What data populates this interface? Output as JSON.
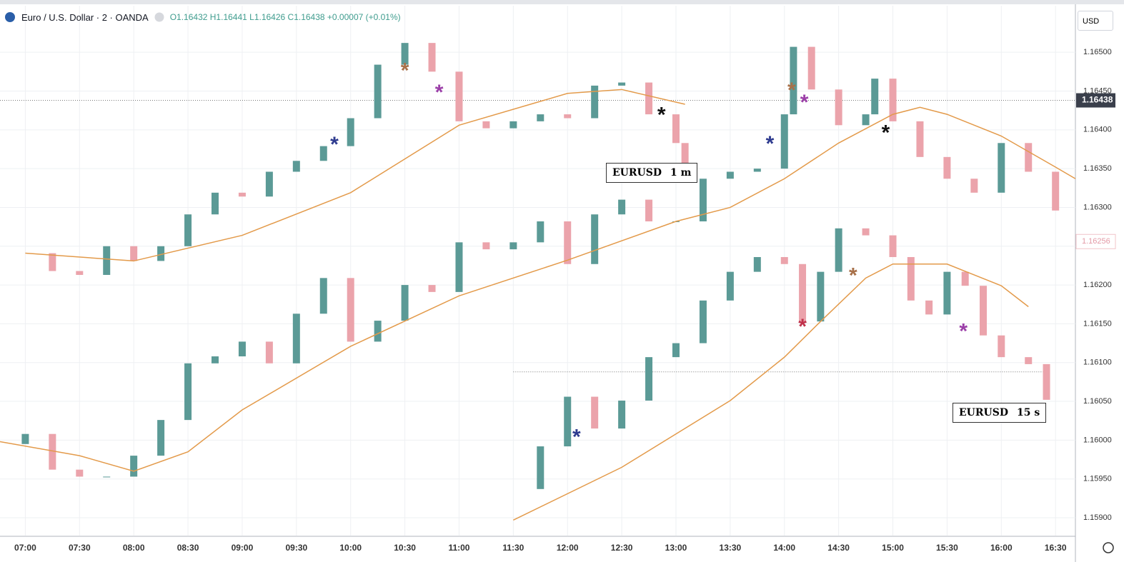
{
  "header": {
    "symbol": "Euro / U.S. Dollar · 2 · OANDA",
    "ohlc": "O1.16432 H1.16441 L1.16426 C1.16438 +0.00007 (+0.01%)",
    "currency": "USD"
  },
  "chart_data": {
    "type": "candlestick",
    "xlim": [
      "06:46",
      "16:41"
    ],
    "xticks": [
      "07:00",
      "07:30",
      "08:00",
      "08:30",
      "09:00",
      "09:30",
      "10:00",
      "10:30",
      "11:00",
      "11:30",
      "12:00",
      "12:30",
      "13:00",
      "13:30",
      "14:00",
      "14:30",
      "15:00",
      "15:30",
      "16:00",
      "16:30"
    ],
    "ylim": [
      1.15877,
      1.1656
    ],
    "yticks": [
      {
        "value": 1.159,
        "label": "1.15900"
      },
      {
        "value": 1.1595,
        "label": "1.15950"
      },
      {
        "value": 1.16,
        "label": "1.16000"
      },
      {
        "value": 1.1605,
        "label": "1.16050"
      },
      {
        "value": 1.161,
        "label": "1.16100"
      },
      {
        "value": 1.1615,
        "label": "1.16150"
      },
      {
        "value": 1.162,
        "label": "1.16200"
      },
      {
        "value": 1.1625,
        "label": "1.16250"
      },
      {
        "value": 1.163,
        "label": "1.16300"
      },
      {
        "value": 1.1635,
        "label": "1.16350"
      },
      {
        "value": 1.164,
        "label": "1.16400"
      },
      {
        "value": 1.1645,
        "label": "1.16450"
      },
      {
        "value": 1.165,
        "label": "1.16500"
      }
    ],
    "grid": true,
    "last_price": {
      "value": 1.16438,
      "label": "1.16438"
    },
    "marked_price": {
      "value": 1.16256,
      "label": "1.16256"
    },
    "price_lines": [
      {
        "value": 1.16438,
        "x": [
          "06:46",
          "16:41"
        ]
      },
      {
        "value": 1.16088,
        "x": [
          "11:30",
          "16:25"
        ]
      }
    ],
    "series": [
      {
        "type": "candles",
        "up_color": "#5b9a96",
        "down_color": "#eba3ab",
        "x": [
          "07:00",
          "07:15",
          "07:30",
          "07:45",
          "08:00",
          "08:15",
          "08:30",
          "08:45",
          "09:00",
          "09:15",
          "09:30",
          "09:45",
          "10:00",
          "10:15",
          "10:30",
          "10:45",
          "11:00",
          "11:15",
          "11:30",
          "11:45",
          "12:00",
          "12:15",
          "12:30",
          "12:45",
          "13:00",
          "13:05"
        ],
        "values": [
          1.16241,
          1.16218,
          1.16213,
          1.1625,
          1.16231,
          1.1625,
          1.16291,
          1.16319,
          1.16314,
          1.16346,
          1.1636,
          1.16379,
          1.16415,
          1.16484,
          1.16512,
          1.16475,
          1.16411,
          1.16402,
          1.16411,
          1.1642,
          1.16415,
          1.16457,
          1.16461,
          1.1642,
          1.16383,
          1.16337
        ]
      },
      {
        "type": "candles",
        "up_color": "#5b9a96",
        "down_color": "#eba3ab",
        "x": [
          "06:50",
          "07:00",
          "07:15",
          "07:30",
          "07:45",
          "08:00",
          "08:15",
          "08:30",
          "08:45",
          "09:00",
          "09:15",
          "09:30",
          "09:45",
          "10:00",
          "10:15",
          "10:30",
          "10:45",
          "11:00",
          "11:15",
          "11:30",
          "11:45",
          "12:00",
          "12:15",
          "12:30",
          "12:45",
          "13:00",
          "13:15",
          "13:30",
          "13:45",
          "14:00",
          "14:05",
          "14:15",
          "14:30",
          "14:45",
          "14:50",
          "15:00",
          "15:15",
          "15:30",
          "15:45",
          "16:00",
          "16:15",
          "16:30"
        ],
        "values": [
          1.15995,
          1.16008,
          1.15962,
          1.15953,
          1.15953,
          1.1598,
          1.16026,
          1.16099,
          1.16108,
          1.16127,
          1.16099,
          1.16163,
          1.16209,
          1.16127,
          1.16154,
          1.162,
          1.16191,
          1.16255,
          1.16246,
          1.16255,
          1.16282,
          1.16227,
          1.16291,
          1.1631,
          1.16282,
          1.16282,
          1.16337,
          1.16346,
          1.1635,
          1.1642,
          1.16507,
          1.16452,
          1.16406,
          1.1642,
          1.16466,
          1.16411,
          1.16365,
          1.16337,
          1.16319,
          1.16383,
          1.16346,
          1.16296
        ]
      },
      {
        "type": "candles",
        "up_color": "#5b9a96",
        "down_color": "#eba3ab",
        "x": [
          "11:30",
          "11:45",
          "12:00",
          "12:15",
          "12:30",
          "12:45",
          "13:00",
          "13:15",
          "13:30",
          "13:45",
          "14:00",
          "14:10",
          "14:20",
          "14:30",
          "14:45",
          "15:00",
          "15:10",
          "15:20",
          "15:30",
          "15:40",
          "15:50",
          "16:00",
          "16:15",
          "16:25"
        ],
        "values": [
          1.15937,
          1.15992,
          1.16056,
          1.16015,
          1.16051,
          1.16107,
          1.16125,
          1.1618,
          1.16217,
          1.16236,
          1.16227,
          1.16153,
          1.16217,
          1.16273,
          1.16264,
          1.16236,
          1.1618,
          1.16162,
          1.16217,
          1.16199,
          1.16135,
          1.16107,
          1.16098,
          1.16052
        ]
      },
      {
        "type": "line",
        "color": "#e39a4a",
        "x": [
          "07:00",
          "08:00",
          "09:00",
          "10:00",
          "11:00",
          "12:00",
          "12:30",
          "13:05"
        ],
        "values": [
          1.16241,
          1.16231,
          1.16264,
          1.16319,
          1.16406,
          1.16447,
          1.16452,
          1.16433
        ]
      },
      {
        "type": "line",
        "color": "#e39a4a",
        "x": [
          "06:46",
          "07:30",
          "08:00",
          "08:30",
          "09:00",
          "10:00",
          "11:00",
          "12:00",
          "13:00",
          "13:30",
          "14:00",
          "14:30",
          "15:00",
          "15:15",
          "15:30",
          "16:00",
          "16:30",
          "16:41"
        ],
        "values": [
          1.15998,
          1.1598,
          1.1596,
          1.15985,
          1.16039,
          1.16121,
          1.16186,
          1.16232,
          1.16282,
          1.163,
          1.16337,
          1.16383,
          1.1642,
          1.16429,
          1.1642,
          1.16392,
          1.16352,
          1.16337
        ]
      },
      {
        "type": "line",
        "color": "#e39a4a",
        "x": [
          "11:30",
          "12:30",
          "13:30",
          "14:00",
          "14:20",
          "14:45",
          "15:00",
          "15:30",
          "16:00",
          "16:15"
        ],
        "values": [
          1.15897,
          1.15965,
          1.16051,
          1.16107,
          1.16153,
          1.16209,
          1.16227,
          1.16227,
          1.16199,
          1.16172
        ]
      }
    ],
    "markers": [
      {
        "symbol": "*",
        "x": "09:51",
        "y": 1.16387,
        "color": "#2e3b8f"
      },
      {
        "symbol": "*",
        "x": "10:30",
        "y": 1.16482,
        "color": "#a8714a"
      },
      {
        "symbol": "*",
        "x": "10:49",
        "y": 1.16454,
        "color": "#9b3fa8"
      },
      {
        "symbol": "*",
        "x": "12:52",
        "y": 1.16425,
        "color": "#111111"
      },
      {
        "symbol": "*",
        "x": "13:52",
        "y": 1.16388,
        "color": "#2e3b8f"
      },
      {
        "symbol": "*",
        "x": "14:04",
        "y": 1.16457,
        "color": "#a8714a"
      },
      {
        "symbol": "*",
        "x": "14:11",
        "y": 1.16441,
        "color": "#9b3fa8"
      },
      {
        "symbol": "*",
        "x": "14:56",
        "y": 1.16402,
        "color": "#111111"
      },
      {
        "symbol": "*",
        "x": "12:05",
        "y": 1.1601,
        "color": "#2e3b8f"
      },
      {
        "symbol": "*",
        "x": "14:38",
        "y": 1.16218,
        "color": "#a8714a"
      },
      {
        "symbol": "*",
        "x": "15:39",
        "y": 1.16146,
        "color": "#9b3fa8"
      },
      {
        "symbol": "*",
        "x": "14:10",
        "y": 1.16152,
        "color": "#c0304a"
      }
    ],
    "annotations": [
      {
        "symbol": "EURUSD",
        "timeframe": "1 m"
      },
      {
        "symbol": "EURUSD",
        "timeframe": "15 s"
      }
    ]
  }
}
